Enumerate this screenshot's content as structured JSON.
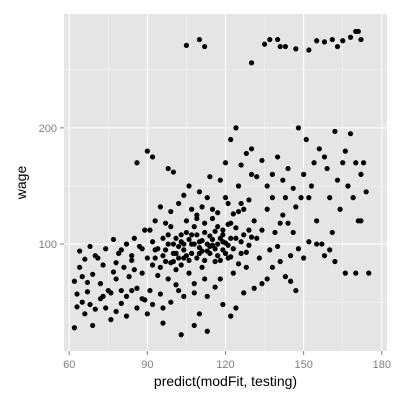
{
  "chart_data": {
    "type": "scatter",
    "title": "",
    "xlabel": "predict(modFit, testing)",
    "ylabel": "wage",
    "xlim": [
      58,
      182
    ],
    "ylim": [
      8,
      298
    ],
    "x_ticks": [
      60,
      90,
      120,
      150,
      180
    ],
    "y_ticks": [
      100,
      200
    ],
    "grid": true,
    "panel_background": "#e5e5e5",
    "grid_color": "#ffffff",
    "point_color": "#000000",
    "series": [
      {
        "points": [
          [
            105,
            271
          ],
          [
            110,
            276
          ],
          [
            112,
            270
          ],
          [
            130,
            256
          ],
          [
            135,
            272
          ],
          [
            137,
            276
          ],
          [
            140,
            276
          ],
          [
            141,
            270
          ],
          [
            143,
            270
          ],
          [
            147,
            268
          ],
          [
            152,
            267
          ],
          [
            155,
            275
          ],
          [
            158,
            274
          ],
          [
            161,
            276
          ],
          [
            163,
            270
          ],
          [
            165,
            275
          ],
          [
            168,
            278
          ],
          [
            170,
            283
          ],
          [
            171,
            283
          ],
          [
            172,
            276
          ],
          [
            62,
            28
          ],
          [
            63,
            57
          ],
          [
            64,
            80
          ],
          [
            66,
            40
          ],
          [
            67,
            67
          ],
          [
            68,
            48
          ],
          [
            69,
            30
          ],
          [
            70,
            90
          ],
          [
            72,
            66
          ],
          [
            73,
            55
          ],
          [
            75,
            60
          ],
          [
            76,
            35
          ],
          [
            77,
            76
          ],
          [
            78,
            70
          ],
          [
            79,
            92
          ],
          [
            80,
            60
          ],
          [
            81,
            80
          ],
          [
            82,
            55
          ],
          [
            83,
            72
          ],
          [
            84,
            90
          ],
          [
            85,
            78
          ],
          [
            86,
            62
          ],
          [
            87,
            98
          ],
          [
            88,
            75
          ],
          [
            89,
            52
          ],
          [
            90,
            88
          ],
          [
            91,
            60
          ],
          [
            92,
            82
          ],
          [
            93,
            95
          ],
          [
            94,
            73
          ],
          [
            95,
            57
          ],
          [
            96,
            105
          ],
          [
            97,
            85
          ],
          [
            98,
            70
          ],
          [
            99,
            115
          ],
          [
            100,
            92
          ],
          [
            101,
            78
          ],
          [
            102,
            60
          ],
          [
            103,
            108
          ],
          [
            104,
            88
          ],
          [
            105,
            120
          ],
          [
            106,
            75
          ],
          [
            107,
            100
          ],
          [
            108,
            66
          ],
          [
            109,
            122
          ],
          [
            110,
            92
          ],
          [
            111,
            80
          ],
          [
            112,
            110
          ],
          [
            113,
            55
          ],
          [
            114,
            98
          ],
          [
            115,
            130
          ],
          [
            116,
            85
          ],
          [
            117,
            115
          ],
          [
            118,
            70
          ],
          [
            119,
            102
          ],
          [
            120,
            140
          ],
          [
            121,
            88
          ],
          [
            122,
            118
          ],
          [
            123,
            75
          ],
          [
            124,
            105
          ],
          [
            125,
            150
          ],
          [
            126,
            92
          ],
          [
            127,
            130
          ],
          [
            128,
            80
          ],
          [
            129,
            112
          ],
          [
            130,
            160
          ],
          [
            86,
            170
          ],
          [
            90,
            180
          ],
          [
            92,
            175
          ],
          [
            98,
            165
          ],
          [
            100,
            162
          ],
          [
            106,
            150
          ],
          [
            110,
            145
          ],
          [
            114,
            158
          ],
          [
            118,
            155
          ],
          [
            120,
            170
          ],
          [
            122,
            190
          ],
          [
            124,
            200
          ],
          [
            126,
            168
          ],
          [
            128,
            178
          ],
          [
            130,
            182
          ],
          [
            132,
            158
          ],
          [
            134,
            172
          ],
          [
            136,
            150
          ],
          [
            138,
            160
          ],
          [
            140,
            175
          ],
          [
            142,
            155
          ],
          [
            144,
            165
          ],
          [
            146,
            148
          ],
          [
            148,
            200
          ],
          [
            150,
            160
          ],
          [
            151,
            190
          ],
          [
            152,
            140
          ],
          [
            153,
            150
          ],
          [
            154,
            170
          ],
          [
            155,
            120
          ],
          [
            156,
            182
          ],
          [
            157,
            100
          ],
          [
            158,
            175
          ],
          [
            159,
            165
          ],
          [
            160,
            140
          ],
          [
            161,
            110
          ],
          [
            162,
            197
          ],
          [
            163,
            155
          ],
          [
            164,
            130
          ],
          [
            165,
            170
          ],
          [
            166,
            180
          ],
          [
            167,
            150
          ],
          [
            168,
            195
          ],
          [
            169,
            140
          ],
          [
            170,
            170
          ],
          [
            171,
            120
          ],
          [
            172,
            160
          ],
          [
            173,
            170
          ],
          [
            174,
            145
          ],
          [
            175,
            75
          ],
          [
            145,
            90
          ],
          [
            146,
            110
          ],
          [
            148,
            96
          ],
          [
            150,
            88
          ],
          [
            152,
            102
          ],
          [
            155,
            100
          ],
          [
            158,
            90
          ],
          [
            160,
            95
          ],
          [
            162,
            85
          ],
          [
            166,
            75
          ],
          [
            170,
            75
          ],
          [
            172,
            120
          ],
          [
            131,
            62
          ],
          [
            134,
            66
          ],
          [
            136,
            70
          ],
          [
            138,
            80
          ],
          [
            141,
            85
          ],
          [
            143,
            72
          ],
          [
            145,
            68
          ],
          [
            147,
            60
          ],
          [
            122,
            38
          ],
          [
            110,
            40
          ],
          [
            104,
            55
          ],
          [
            96,
            32
          ],
          [
            103,
            22
          ],
          [
            108,
            30
          ],
          [
            113,
            25
          ],
          [
            96,
            45
          ],
          [
            99,
            50
          ],
          [
            101,
            65
          ],
          [
            108,
            58
          ],
          [
            112,
            70
          ],
          [
            116,
            63
          ],
          [
            119,
            48
          ],
          [
            124,
            45
          ],
          [
            127,
            58
          ],
          [
            133,
            88
          ],
          [
            137,
            95
          ],
          [
            139,
            110
          ],
          [
            142,
            125
          ],
          [
            144,
            118
          ],
          [
            147,
            132
          ],
          [
            149,
            140
          ],
          [
            125,
            128
          ],
          [
            126,
            135
          ],
          [
            129,
            138
          ],
          [
            131,
            120
          ],
          [
            132,
            105
          ],
          [
            134,
            112
          ],
          [
            136,
            130
          ],
          [
            138,
            140
          ],
          [
            140,
            98
          ],
          [
            141,
            118
          ],
          [
            143,
            140
          ],
          [
            91,
            112
          ],
          [
            93,
            120
          ],
          [
            95,
            132
          ],
          [
            97,
            118
          ],
          [
            99,
            128
          ],
          [
            102,
            135
          ],
          [
            104,
            142
          ],
          [
            107,
            130
          ],
          [
            109,
            125
          ],
          [
            111,
            132
          ],
          [
            113,
            140
          ],
          [
            115,
            122
          ],
          [
            117,
            127
          ],
          [
            119,
            112
          ],
          [
            121,
            135
          ],
          [
            123,
            126
          ],
          [
            100,
            100
          ],
          [
            101,
            105
          ],
          [
            102,
            98
          ],
          [
            103,
            102
          ],
          [
            104,
            95
          ],
          [
            105,
            110
          ],
          [
            106,
            104
          ],
          [
            107,
            92
          ],
          [
            108,
            115
          ],
          [
            109,
            108
          ],
          [
            110,
            97
          ],
          [
            111,
            103
          ],
          [
            112,
            118
          ],
          [
            113,
            94
          ],
          [
            114,
            107
          ],
          [
            115,
            99
          ],
          [
            116,
            111
          ],
          [
            117,
            90
          ],
          [
            118,
            105
          ],
          [
            119,
            95
          ],
          [
            120,
            101
          ],
          [
            121,
            117
          ],
          [
            122,
            89
          ],
          [
            123,
            96
          ],
          [
            124,
            114
          ],
          [
            125,
            83
          ],
          [
            126,
            102
          ],
          [
            127,
            108
          ],
          [
            128,
            93
          ],
          [
            129,
            99
          ],
          [
            130,
            106
          ],
          [
            92,
            102
          ],
          [
            94,
            96
          ],
          [
            96,
            90
          ],
          [
            98,
            108
          ],
          [
            99,
            84
          ],
          [
            88,
            96
          ],
          [
            89,
            112
          ],
          [
            85,
            105
          ],
          [
            84,
            86
          ],
          [
            82,
            100
          ],
          [
            80,
            95
          ],
          [
            78,
            84
          ],
          [
            77,
            104
          ],
          [
            74,
            96
          ],
          [
            73,
            82
          ],
          [
            71,
            88
          ],
          [
            69,
            74
          ],
          [
            68,
            98
          ],
          [
            66,
            87
          ],
          [
            65,
            72
          ],
          [
            64,
            94
          ],
          [
            62,
            68
          ],
          [
            63,
            46
          ],
          [
            65,
            50
          ],
          [
            67,
            59
          ],
          [
            70,
            44
          ],
          [
            72,
            53
          ],
          [
            74,
            45
          ],
          [
            76,
            58
          ],
          [
            78,
            42
          ],
          [
            80,
            49
          ],
          [
            82,
            38
          ],
          [
            84,
            60
          ],
          [
            86,
            45
          ],
          [
            88,
            53
          ],
          [
            90,
            40
          ],
          [
            92,
            48
          ],
          [
            93,
            88
          ],
          [
            95,
            80
          ],
          [
            97,
            95
          ],
          [
            98,
            100
          ],
          [
            100,
            85
          ],
          [
            101,
            92
          ],
          [
            102,
            88
          ],
          [
            103,
            82
          ],
          [
            104,
            100
          ],
          [
            105,
            90
          ],
          [
            106,
            86
          ],
          [
            107,
            108
          ],
          [
            108,
            100
          ],
          [
            109,
            88
          ],
          [
            110,
            102
          ],
          [
            111,
            94
          ],
          [
            112,
            86
          ],
          [
            113,
            100
          ],
          [
            114,
            92
          ],
          [
            115,
            104
          ],
          [
            116,
            96
          ],
          [
            117,
            100
          ],
          [
            118,
            86
          ],
          [
            119,
            108
          ],
          [
            120,
            92
          ],
          [
            121,
            99
          ],
          [
            122,
            105
          ]
        ]
      }
    ]
  }
}
